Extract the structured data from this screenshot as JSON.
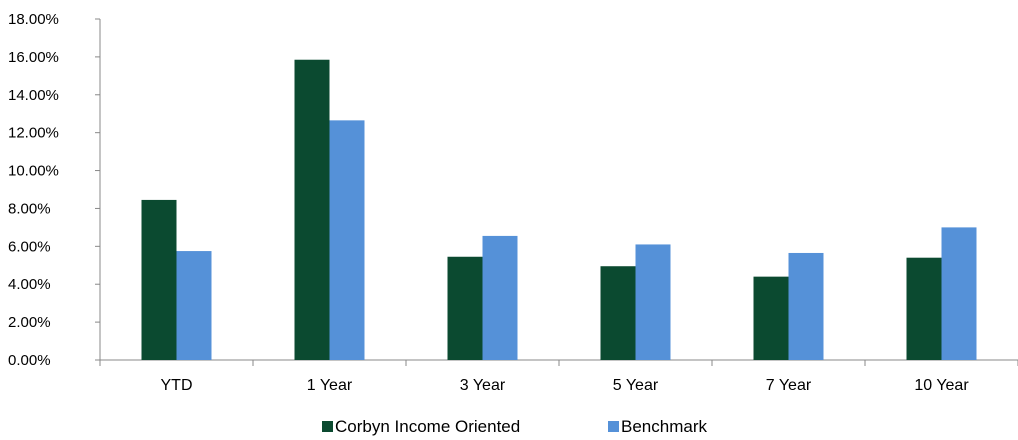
{
  "chart_data": {
    "type": "bar",
    "title": "",
    "xlabel": "",
    "ylabel": "",
    "categories": [
      "YTD",
      "1 Year",
      "3 Year",
      "5 Year",
      "7 Year",
      "10 Year"
    ],
    "series": [
      {
        "name": "Corbyn Income Oriented",
        "color": "#0b4a30",
        "values": [
          8.45,
          15.85,
          5.45,
          4.95,
          4.4,
          5.4
        ]
      },
      {
        "name": "Benchmark",
        "color": "#5591d8",
        "values": [
          5.75,
          12.65,
          6.55,
          6.1,
          5.65,
          7.0
        ]
      }
    ],
    "ylim": [
      0,
      18
    ],
    "yticks": [
      0,
      2,
      4,
      6,
      8,
      10,
      12,
      14,
      16,
      18
    ],
    "ytick_labels": [
      "0.00%",
      "2.00%",
      "4.00%",
      "6.00%",
      "8.00%",
      "10.00%",
      "12.00%",
      "14.00%",
      "16.00%",
      "18.00%"
    ],
    "grid": false,
    "legend_position": "bottom-center"
  }
}
